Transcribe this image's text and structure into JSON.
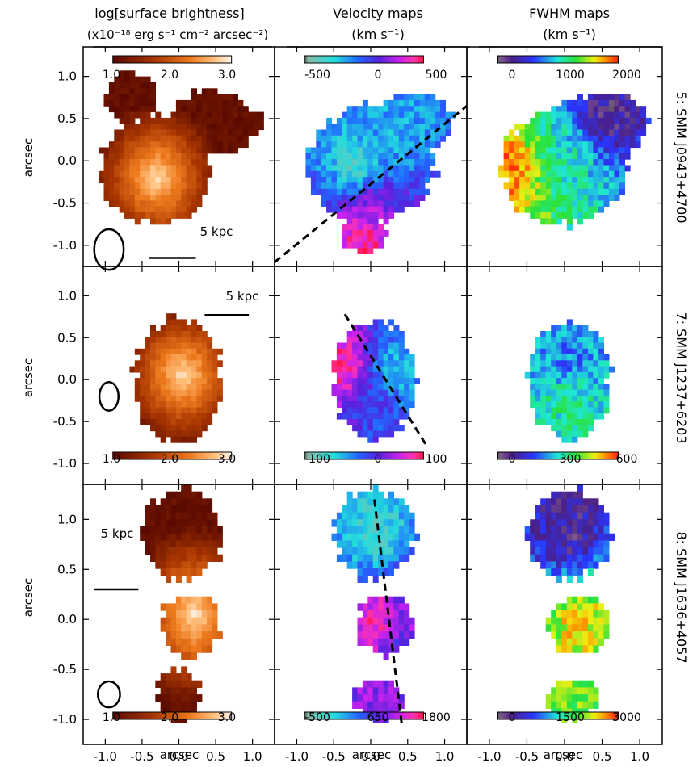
{
  "figure": {
    "columns": [
      {
        "title_line1": "log[surface brightness]",
        "title_line2": "(x10⁻¹⁸ erg s⁻¹ cm⁻² arcsec⁻²)"
      },
      {
        "title_line1": "Velocity maps",
        "title_line2": "(km s⁻¹)"
      },
      {
        "title_line1": "FWHM maps",
        "title_line2": "(km s⁻¹)"
      }
    ],
    "rows": [
      {
        "name": "5: SMM J0943+4700",
        "scale_label": "5 kpc",
        "colorbars": [
          {
            "ticks": [
              "1.0",
              "2.0",
              "3.0"
            ],
            "scheme": "heat"
          },
          {
            "ticks": [
              "-500",
              "0",
              "500"
            ],
            "scheme": "velocity"
          },
          {
            "ticks": [
              "0",
              "1000",
              "2000"
            ],
            "scheme": "rainbow"
          }
        ]
      },
      {
        "name": "7: SMM J1237+6203",
        "scale_label": "5 kpc",
        "colorbars": [
          {
            "ticks": [
              "1.0",
              "2.0",
              "3.0"
            ],
            "scheme": "heat"
          },
          {
            "ticks": [
              "-100",
              "0",
              "100"
            ],
            "scheme": "velocity"
          },
          {
            "ticks": [
              "0",
              "300",
              "600"
            ],
            "scheme": "rainbow"
          }
        ]
      },
      {
        "name": "8: SMM J1636+4057",
        "scale_label": "5 kpc",
        "colorbars": [
          {
            "ticks": [
              "1.0",
              "2.0",
              "3.0"
            ],
            "scheme": "heat"
          },
          {
            "ticks": [
              "-500",
              "650",
              "1800"
            ],
            "scheme": "velocity"
          },
          {
            "ticks": [
              "0",
              "1500",
              "3000"
            ],
            "scheme": "rainbow"
          }
        ]
      }
    ],
    "axis_label": "arcsec"
  },
  "chart_data": {
    "type": "heatmap",
    "layout": "3x3 grid of spatial maps",
    "x_axis": {
      "label": "arcsec",
      "range": [
        -1.3,
        1.3
      ],
      "ticks": [
        -1.0,
        -0.5,
        0.0,
        0.5,
        1.0
      ]
    },
    "y_axis": {
      "label": "arcsec",
      "range": [
        -1.25,
        1.35
      ],
      "ticks": [
        -1.0,
        -0.5,
        0.0,
        0.5,
        1.0
      ]
    },
    "colors": {
      "frame": "#000000",
      "background": "#ffffff"
    },
    "panels": [
      {
        "row": "5: SMM J0943+4700",
        "map": "surface brightness",
        "colorscale": [
          1.0,
          3.0
        ],
        "beam_ellipse": {
          "x": -0.95,
          "y": -1.05,
          "rx": 0.2,
          "ry": 0.24
        },
        "scalebar": {
          "label": "5 kpc",
          "x0": -0.4,
          "x1": 0.23,
          "y": -1.15
        },
        "blobs": [
          {
            "x": -0.3,
            "y": -0.1,
            "rx": 0.75,
            "ry": 0.65
          },
          {
            "x": 0.45,
            "y": 0.45,
            "rx": 0.55,
            "ry": 0.4
          },
          {
            "x": -0.65,
            "y": 0.75,
            "rx": 0.35,
            "ry": 0.3
          },
          {
            "x": 0.95,
            "y": 0.45,
            "rx": 0.18,
            "ry": 0.18
          }
        ],
        "peak": {
          "x": -0.3,
          "y": -0.2,
          "value": 3.0
        }
      },
      {
        "row": "5: SMM J0943+4700",
        "map": "velocity",
        "colorscale": [
          -500,
          500
        ],
        "axis_line": {
          "x0": -1.3,
          "y0": -1.2,
          "x1": 1.3,
          "y1": 0.65
        },
        "blobs": [
          {
            "x": 0.0,
            "y": -0.05,
            "rx": 0.85,
            "ry": 0.7
          },
          {
            "x": 0.55,
            "y": 0.45,
            "rx": 0.6,
            "ry": 0.35
          },
          {
            "x": -0.1,
            "y": -0.85,
            "rx": 0.3,
            "ry": 0.25
          }
        ],
        "value_regions": [
          {
            "x": 0.4,
            "y": 0.3,
            "value": -200
          },
          {
            "x": -0.2,
            "y": -0.1,
            "value": -420
          },
          {
            "x": 0.0,
            "y": -0.55,
            "value": 250
          },
          {
            "x": -0.1,
            "y": -0.9,
            "value": 480
          }
        ]
      },
      {
        "row": "5: SMM J0943+4700",
        "map": "FWHM",
        "colorscale": [
          0,
          2000
        ],
        "blobs": [
          {
            "x": 0.0,
            "y": -0.05,
            "rx": 0.85,
            "ry": 0.7
          },
          {
            "x": 0.55,
            "y": 0.45,
            "rx": 0.6,
            "ry": 0.35
          }
        ],
        "value_regions": [
          {
            "x": 0.0,
            "y": 0.0,
            "value": 1000
          },
          {
            "x": 0.55,
            "y": 0.55,
            "value": 100
          },
          {
            "x": -0.7,
            "y": -0.1,
            "value": 1900
          }
        ]
      },
      {
        "row": "7: SMM J1237+6203",
        "map": "surface brightness",
        "colorscale": [
          1.0,
          3.0
        ],
        "beam_ellipse": {
          "x": -0.95,
          "y": -0.2,
          "rx": 0.13,
          "ry": 0.17
        },
        "scalebar": {
          "label": "5 kpc",
          "x0": 0.35,
          "x1": 0.95,
          "y": 0.77
        },
        "blobs": [
          {
            "x": 0.0,
            "y": 0.0,
            "rx": 0.6,
            "ry": 0.75
          }
        ],
        "peak": {
          "x": 0.05,
          "y": 0.05,
          "value": 3.0
        }
      },
      {
        "row": "7: SMM J1237+6203",
        "map": "velocity",
        "colorscale": [
          -100,
          100
        ],
        "axis_line": {
          "x0": -0.35,
          "y0": 0.78,
          "x1": 0.75,
          "y1": -0.78
        },
        "blobs": [
          {
            "x": 0.05,
            "y": 0.0,
            "rx": 0.55,
            "ry": 0.72
          }
        ],
        "value_regions": [
          {
            "x": -0.35,
            "y": 0.15,
            "value": 100
          },
          {
            "x": 0.3,
            "y": 0.1,
            "value": -60
          },
          {
            "x": 0.1,
            "y": -0.3,
            "value": 0
          }
        ]
      },
      {
        "row": "7: SMM J1237+6203",
        "map": "FWHM",
        "colorscale": [
          0,
          600
        ],
        "blobs": [
          {
            "x": 0.05,
            "y": 0.0,
            "rx": 0.55,
            "ry": 0.72
          }
        ],
        "value_regions": [
          {
            "x": 0.0,
            "y": 0.2,
            "value": 200
          },
          {
            "x": 0.0,
            "y": -0.25,
            "value": 330
          }
        ]
      },
      {
        "row": "8: SMM J1636+4057",
        "map": "surface brightness",
        "colorscale": [
          1.0,
          3.0
        ],
        "beam_ellipse": {
          "x": -0.95,
          "y": -0.75,
          "rx": 0.15,
          "ry": 0.13
        },
        "scalebar": {
          "label": "5 kpc",
          "x0": -1.15,
          "x1": -0.55,
          "y": 0.3
        },
        "blobs": [
          {
            "x": 0.05,
            "y": 0.85,
            "rx": 0.55,
            "ry": 0.45
          },
          {
            "x": 0.15,
            "y": -0.05,
            "rx": 0.4,
            "ry": 0.32
          },
          {
            "x": 0.0,
            "y": -0.75,
            "rx": 0.3,
            "ry": 0.25
          }
        ],
        "peak": {
          "x": 0.2,
          "y": 0.05,
          "value": 3.0
        }
      },
      {
        "row": "8: SMM J1636+4057",
        "map": "velocity",
        "colorscale": [
          -500,
          1800
        ],
        "axis_line": {
          "x0": 0.05,
          "y0": 1.2,
          "x1": 0.42,
          "y1": -1.05
        },
        "blobs": [
          {
            "x": 0.05,
            "y": 0.85,
            "rx": 0.55,
            "ry": 0.45
          },
          {
            "x": 0.2,
            "y": -0.05,
            "rx": 0.4,
            "ry": 0.3
          },
          {
            "x": 0.1,
            "y": -0.8,
            "rx": 0.35,
            "ry": 0.2
          }
        ],
        "value_regions": [
          {
            "x": 0.05,
            "y": 0.8,
            "value": -250
          },
          {
            "x": 0.1,
            "y": 0.0,
            "value": 1700
          },
          {
            "x": 0.3,
            "y": -0.2,
            "value": 900
          }
        ]
      },
      {
        "row": "8: SMM J1636+4057",
        "map": "FWHM",
        "colorscale": [
          0,
          3000
        ],
        "blobs": [
          {
            "x": 0.05,
            "y": 0.85,
            "rx": 0.55,
            "ry": 0.45
          },
          {
            "x": 0.2,
            "y": -0.05,
            "rx": 0.4,
            "ry": 0.3
          },
          {
            "x": 0.1,
            "y": -0.8,
            "rx": 0.35,
            "ry": 0.2
          }
        ],
        "value_regions": [
          {
            "x": 0.05,
            "y": 0.85,
            "value": 200
          },
          {
            "x": 0.2,
            "y": 0.0,
            "value": 2500
          }
        ]
      }
    ]
  }
}
